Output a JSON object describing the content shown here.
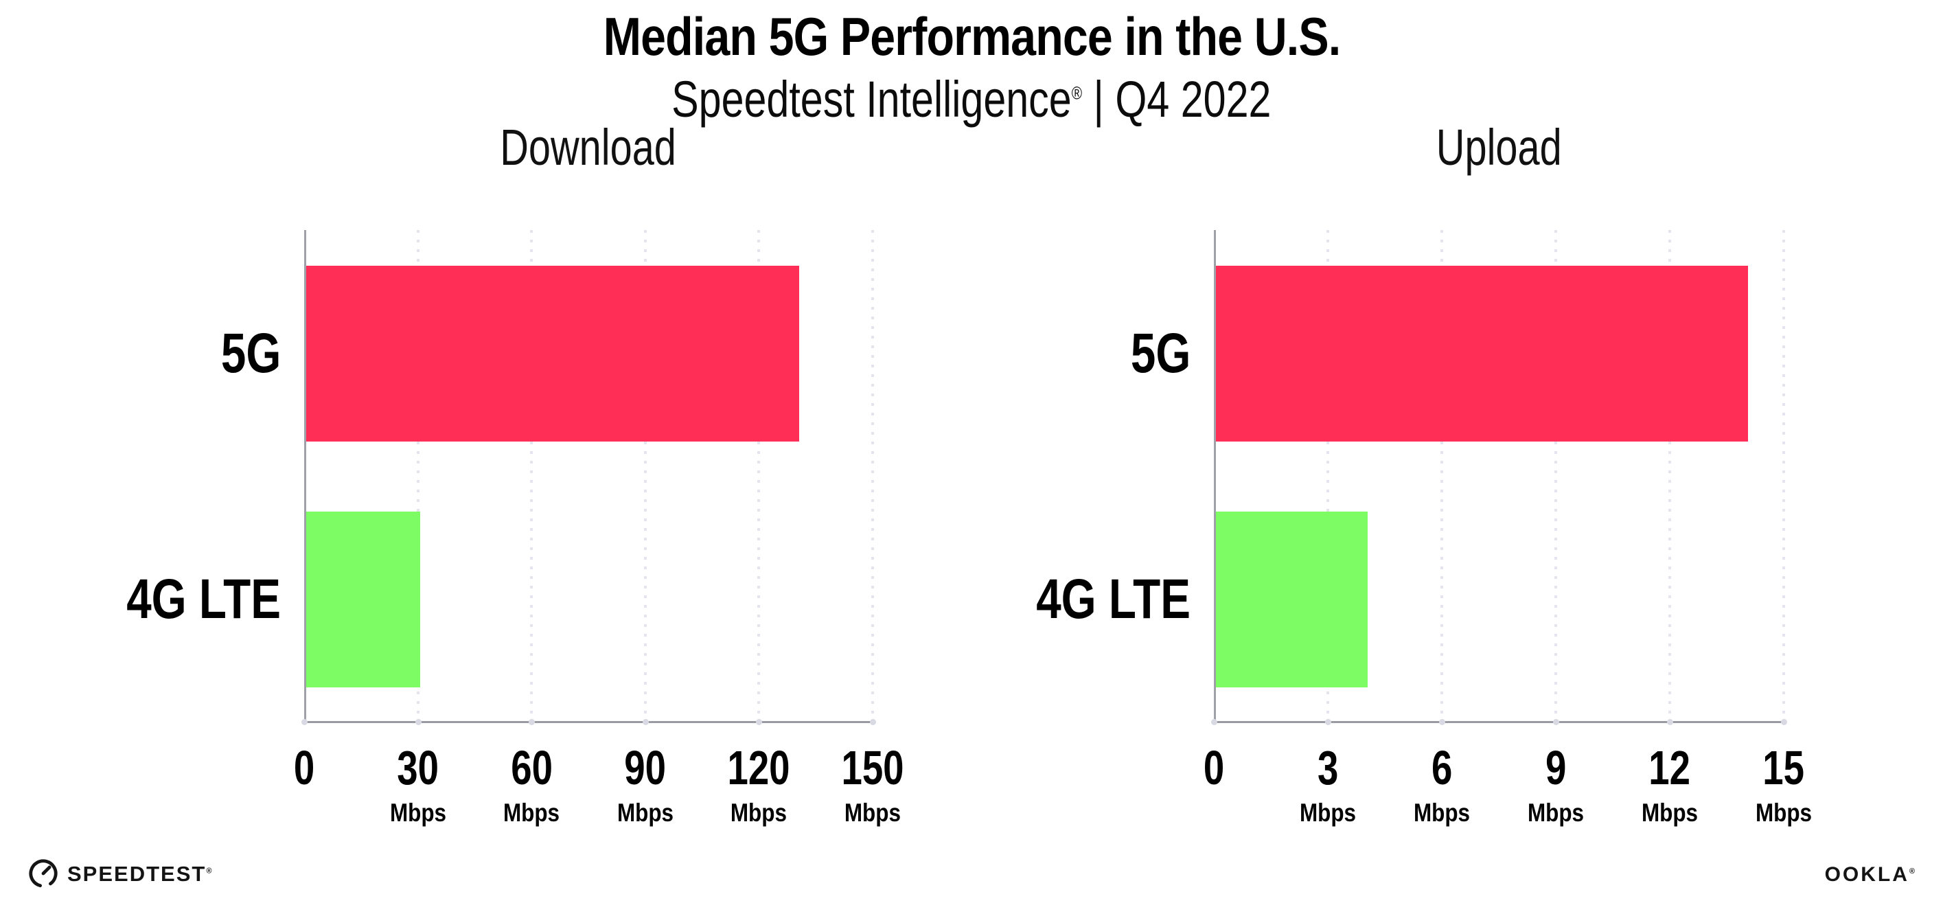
{
  "header": {
    "title": "Median 5G Performance in the U.S.",
    "subtitle_brand": "Speedtest Intelligence",
    "subtitle_mark": "®",
    "subtitle_rest": " | Q4 2022"
  },
  "chart_data": [
    {
      "type": "bar",
      "orientation": "horizontal",
      "title": "Download",
      "categories": [
        "5G",
        "4G LTE"
      ],
      "values": [
        130,
        30
      ],
      "unit": "Mbps",
      "xlabel": "",
      "ylabel": "",
      "xlim": [
        0,
        150
      ],
      "xticks": [
        0,
        30,
        60,
        90,
        120,
        150
      ],
      "bar_colors": [
        "#FF2E56",
        "#7DFC64"
      ],
      "grid": "vertical-dotted",
      "legend_position": "none"
    },
    {
      "type": "bar",
      "orientation": "horizontal",
      "title": "Upload",
      "categories": [
        "5G",
        "4G LTE"
      ],
      "values": [
        14,
        4
      ],
      "unit": "Mbps",
      "xlabel": "",
      "ylabel": "",
      "xlim": [
        0,
        15
      ],
      "xticks": [
        0,
        3,
        6,
        9,
        12,
        15
      ],
      "bar_colors": [
        "#FF2E56",
        "#7DFC64"
      ],
      "grid": "vertical-dotted",
      "legend_position": "none"
    }
  ],
  "footer": {
    "speedtest_label": "SPEEDTEST",
    "speedtest_mark": "®",
    "ookla_label": "OOKLA",
    "ookla_mark": "®"
  },
  "colors": {
    "bar_5g": "#FF2E56",
    "bar_4g_lte": "#7DFC64",
    "gridline": "#E4E4EE",
    "axis": "#9A9AA2",
    "tick_dot": "#D9D9E3",
    "text": "#000000",
    "background": "#FFFFFF"
  }
}
